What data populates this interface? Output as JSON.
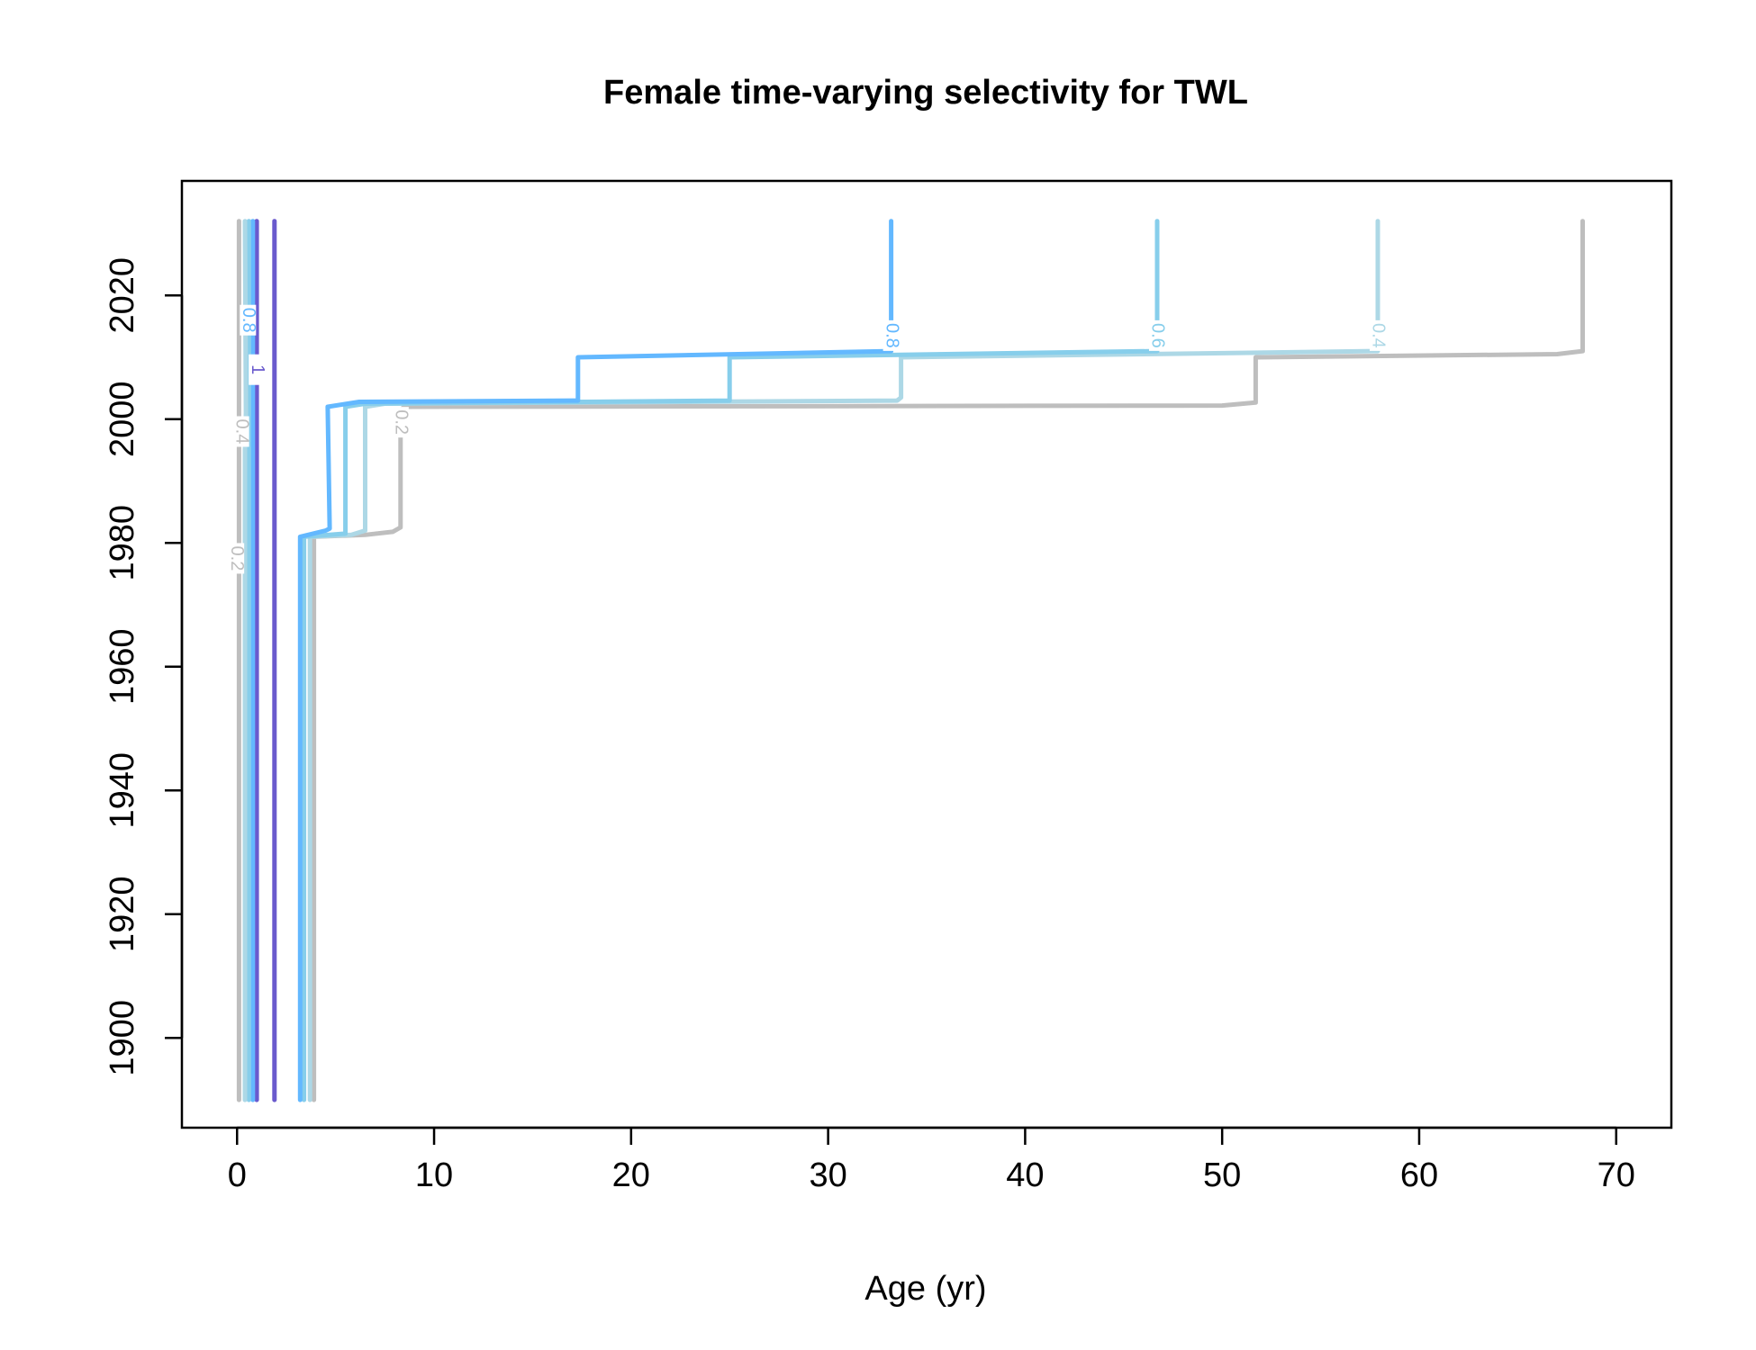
{
  "chart_data": {
    "type": "line",
    "subtype": "contour",
    "title": "Female time-varying selectivity for TWL",
    "xlabel": "Age (yr)",
    "ylabel": "",
    "xlim": [
      -2.8,
      72.8
    ],
    "ylim": [
      1885.5,
      2038.5
    ],
    "xticks": [
      0,
      10,
      20,
      30,
      40,
      50,
      60,
      70
    ],
    "yticks": [
      1900,
      1920,
      1940,
      1960,
      1980,
      2000,
      2020
    ],
    "grid": false,
    "legend": "none",
    "series": [
      {
        "level": "0.2",
        "color": "#bebebe",
        "points": [
          [
            3.9,
            1890
          ],
          [
            3.9,
            1981
          ],
          [
            6.5,
            1981.3
          ],
          [
            7.9,
            1981.8
          ],
          [
            8.3,
            1982.5
          ],
          [
            8.3,
            1995
          ],
          [
            8.3,
            1997
          ],
          [
            8.3,
            2001.5
          ],
          [
            8.5,
            2002
          ],
          [
            50,
            2002.2
          ],
          [
            51.7,
            2002.7
          ],
          [
            51.7,
            2010
          ],
          [
            67,
            2010.5
          ],
          [
            68.3,
            2011
          ],
          [
            68.3,
            2032
          ]
        ]
      },
      {
        "level": "0.4",
        "color": "#add8e6",
        "points": [
          [
            3.7,
            1890
          ],
          [
            3.7,
            1981
          ],
          [
            5.8,
            1981.3
          ],
          [
            6.5,
            1982
          ],
          [
            6.5,
            2002
          ],
          [
            7.5,
            2002.5
          ],
          [
            33.5,
            2003
          ],
          [
            33.7,
            2003.5
          ],
          [
            33.7,
            2010
          ],
          [
            57.9,
            2011
          ],
          [
            57.9,
            2016
          ],
          [
            57.9,
            2032
          ]
        ]
      },
      {
        "level": "0.6",
        "color": "#87ceeb",
        "points": [
          [
            3.4,
            1890
          ],
          [
            3.4,
            1981
          ],
          [
            5.5,
            1981.5
          ],
          [
            5.5,
            2002
          ],
          [
            6.5,
            2002.5
          ],
          [
            25,
            2003
          ],
          [
            25,
            2010
          ],
          [
            46.7,
            2011
          ],
          [
            46.7,
            2016
          ],
          [
            46.7,
            2032
          ]
        ]
      },
      {
        "level": "0.8",
        "color": "#63b8ff",
        "points": [
          [
            3.2,
            1890
          ],
          [
            3.2,
            1981
          ],
          [
            4.5,
            1982
          ],
          [
            4.7,
            1982.3
          ],
          [
            4.6,
            2002
          ],
          [
            6.2,
            2002.8
          ],
          [
            17.3,
            2003
          ],
          [
            17.3,
            2010
          ],
          [
            33.2,
            2011
          ],
          [
            33.2,
            2016
          ],
          [
            33.2,
            2032
          ]
        ]
      },
      {
        "level": "1",
        "color": "#6a5acd",
        "points": [
          [
            1.9,
            1890
          ],
          [
            1.9,
            2032
          ]
        ]
      },
      {
        "level": "1",
        "color": "#6a5acd",
        "points": [
          [
            1.0,
            1890
          ],
          [
            1.0,
            2006
          ],
          [
            1.0,
            2010
          ],
          [
            1.0,
            2032
          ]
        ]
      },
      {
        "level": "0.8",
        "color": "#63b8ff",
        "points": [
          [
            0.8,
            1890
          ],
          [
            0.8,
            2032
          ]
        ]
      },
      {
        "level": "0.6",
        "color": "#87ceeb",
        "points": [
          [
            0.6,
            1890
          ],
          [
            0.6,
            2032
          ]
        ]
      },
      {
        "level": "0.4",
        "color": "#add8e6",
        "points": [
          [
            0.4,
            1890
          ],
          [
            0.4,
            1995
          ],
          [
            0.45,
            2001
          ],
          [
            0.4,
            2032
          ]
        ]
      },
      {
        "level": "0.2",
        "color": "#bebebe",
        "points": [
          [
            0.1,
            1890
          ],
          [
            0.1,
            1974
          ],
          [
            0.1,
            1981
          ],
          [
            0.1,
            2032
          ]
        ]
      }
    ],
    "contour_labels": [
      {
        "text": "0.8",
        "x": 33.2,
        "y": 2013.5,
        "color": "#63b8ff"
      },
      {
        "text": "0.6",
        "x": 46.7,
        "y": 2013.5,
        "color": "#87ceeb"
      },
      {
        "text": "0.4",
        "x": 57.9,
        "y": 2013.5,
        "color": "#add8e6"
      },
      {
        "text": "0.2",
        "x": 8.3,
        "y": 1999.5,
        "color": "#bebebe"
      },
      {
        "text": "1",
        "x": 1.0,
        "y": 2008,
        "color": "#6a5acd"
      },
      {
        "text": "0.8",
        "x": 0.55,
        "y": 2016,
        "color": "#63b8ff"
      },
      {
        "text": "0.4",
        "x": 0.2,
        "y": 1998,
        "color": "#bebebe"
      },
      {
        "text": "0.2",
        "x": -0.05,
        "y": 1977.5,
        "color": "#bebebe"
      }
    ]
  }
}
